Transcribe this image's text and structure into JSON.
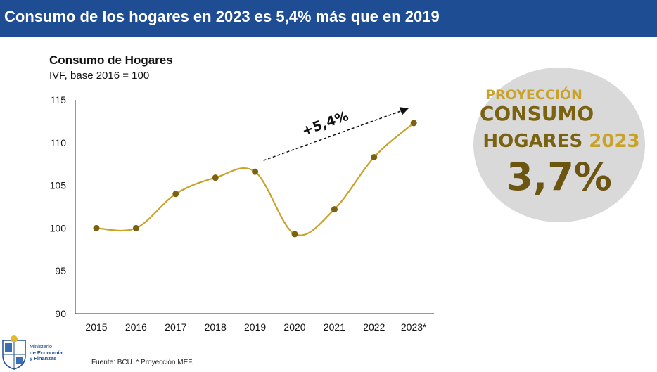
{
  "banner": {
    "title": "Consumo de los hogares en 2023 es 5,4% más que en 2019"
  },
  "chart_data": {
    "type": "line",
    "title": "Consumo de Hogares",
    "subtitle": "IVF, base 2016 = 100",
    "categories": [
      "2015",
      "2016",
      "2017",
      "2018",
      "2019",
      "2020",
      "2021",
      "2022",
      "2023*"
    ],
    "values": [
      100.0,
      100.0,
      104.0,
      105.9,
      106.6,
      99.3,
      102.2,
      108.3,
      112.3
    ],
    "ylim": [
      90,
      115
    ],
    "yticks": [
      "90",
      "95",
      "100",
      "105",
      "110",
      "115"
    ],
    "annotation": "+5,4%",
    "grid": false,
    "line_color": "#c9a227",
    "marker_color": "#7a6210"
  },
  "projection": {
    "line1": "PROYECCIÓN",
    "line2": "CONSUMO",
    "line3_word": "HOGARES",
    "line3_year": "2023",
    "value": "3,7%"
  },
  "footer": {
    "logo_line1": "Ministerio",
    "logo_line2": "de Economía",
    "logo_line3": "y Finanzas",
    "source": "Fuente: BCU. * Proyección MEF."
  }
}
